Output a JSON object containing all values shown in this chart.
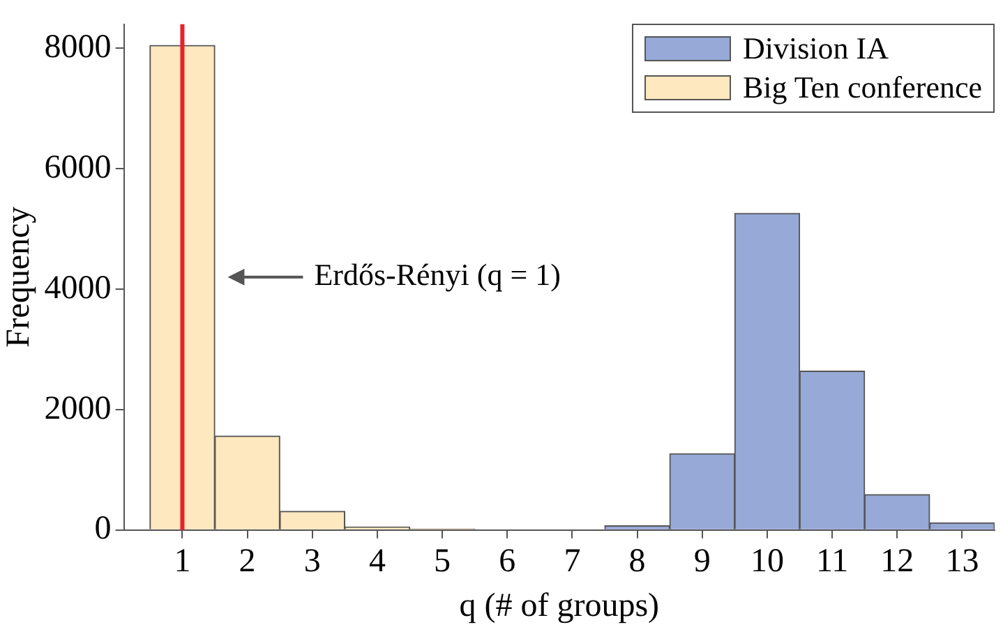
{
  "chart_data": {
    "type": "histogram",
    "xlabel": "q (# of groups)",
    "ylabel": "Frequency",
    "bins": [
      0.5,
      1.5,
      2.5,
      3.5,
      4.5,
      5.5,
      6.5,
      7.5,
      8.5,
      9.5,
      10.5,
      11.5,
      12.5,
      13.5
    ],
    "series": [
      {
        "name": "Division IA",
        "color": "#97a9d6",
        "values": [
          0,
          0,
          0,
          0,
          0,
          0,
          0,
          70,
          1270,
          5260,
          2640,
          590,
          120
        ]
      },
      {
        "name": "Big Ten conference",
        "color": "#fde8bf",
        "values": [
          8050,
          1560,
          310,
          50,
          20,
          0,
          0,
          0,
          0,
          0,
          0,
          0,
          0
        ]
      }
    ],
    "xlim": [
      0.1,
      13.5
    ],
    "xticks": [
      1,
      2,
      3,
      4,
      5,
      6,
      7,
      8,
      9,
      10,
      11,
      12,
      13
    ],
    "ylim": [
      0,
      8400
    ],
    "yticks": [
      0,
      2000,
      4000,
      6000,
      8000
    ],
    "grid": false,
    "legend": "top right",
    "ref_lines": [
      {
        "axis": "x",
        "value": 1,
        "color": "#e8222b"
      }
    ],
    "annotations": [
      "Erdős-Rényi (q = 1)"
    ]
  }
}
